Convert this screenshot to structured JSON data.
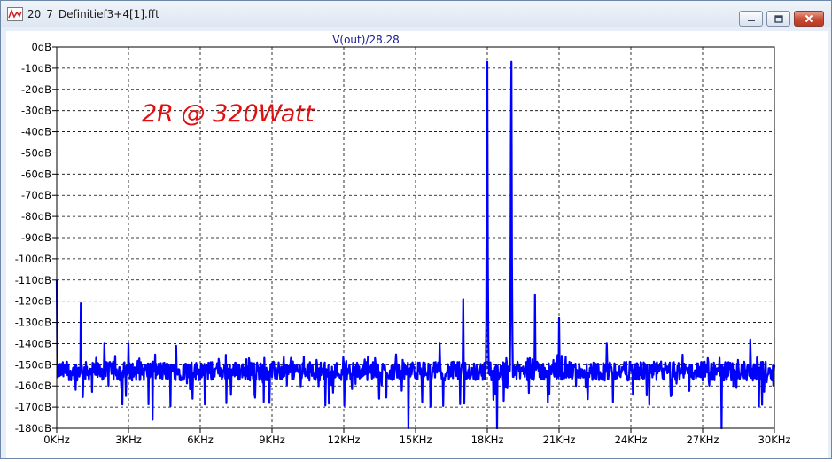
{
  "window": {
    "title": "20_7_Definitief3+4[1].fft",
    "controls": [
      "minimize",
      "maximize",
      "close"
    ]
  },
  "colors": {
    "trace": "#0000ff",
    "annotation": "#e01010",
    "series_title": "#1a1a8c",
    "grid": "#000000"
  },
  "chart_data": {
    "type": "line",
    "title": "V(out)/28.28",
    "annotation": "2R @ 320Watt",
    "xlabel": "",
    "ylabel": "",
    "xlim": [
      0,
      30000
    ],
    "ylim": [
      -180,
      0
    ],
    "grid": true,
    "x_ticks": [
      0,
      3000,
      6000,
      9000,
      12000,
      15000,
      18000,
      21000,
      24000,
      27000,
      30000
    ],
    "x_tick_labels": [
      "0KHz",
      "3KHz",
      "6KHz",
      "9KHz",
      "12KHz",
      "15KHz",
      "18KHz",
      "21KHz",
      "24KHz",
      "27KHz",
      "30KHz"
    ],
    "y_ticks": [
      0,
      -10,
      -20,
      -30,
      -40,
      -50,
      -60,
      -70,
      -80,
      -90,
      -100,
      -110,
      -120,
      -130,
      -140,
      -150,
      -160,
      -170,
      -180
    ],
    "y_tick_labels": [
      "0dB",
      "-10dB",
      "-20dB",
      "-30dB",
      "-40dB",
      "-50dB",
      "-60dB",
      "-70dB",
      "-80dB",
      "-90dB",
      "-100dB",
      "-110dB",
      "-120dB",
      "-130dB",
      "-140dB",
      "-150dB",
      "-160dB",
      "-170dB",
      "-180dB"
    ],
    "noise_floor_db": -153,
    "peaks": [
      {
        "freq": 0,
        "db": -110
      },
      {
        "freq": 1000,
        "db": -121
      },
      {
        "freq": 2000,
        "db": -140
      },
      {
        "freq": 3000,
        "db": -140
      },
      {
        "freq": 5000,
        "db": -141
      },
      {
        "freq": 16000,
        "db": -140
      },
      {
        "freq": 17000,
        "db": -119
      },
      {
        "freq": 18000,
        "db": -7
      },
      {
        "freq": 19000,
        "db": -7
      },
      {
        "freq": 20000,
        "db": -117
      },
      {
        "freq": 21000,
        "db": -128
      },
      {
        "freq": 23000,
        "db": -140
      },
      {
        "freq": 29000,
        "db": -138
      }
    ],
    "dips": [
      {
        "freq": 4000,
        "db": -176
      },
      {
        "freq": 14700,
        "db": -180
      },
      {
        "freq": 18000,
        "db": -180
      },
      {
        "freq": 18400,
        "db": -180
      },
      {
        "freq": 27800,
        "db": -180
      }
    ],
    "series": [
      {
        "name": "V(out)/28.28"
      }
    ]
  }
}
